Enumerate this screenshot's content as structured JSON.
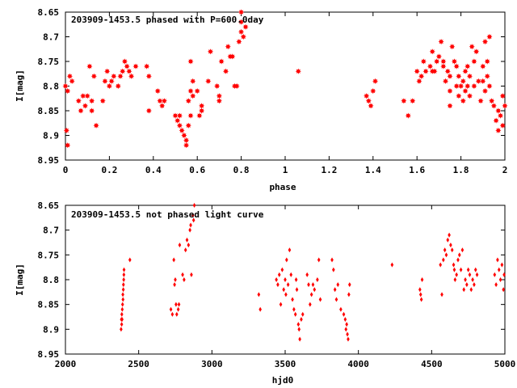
{
  "chart_data": [
    {
      "type": "scatter",
      "title": "203909-1453.5 phased with P=600.0day",
      "xlabel": "phase",
      "ylabel": "I[mag]",
      "xlim": [
        0,
        2
      ],
      "ylim": [
        8.65,
        8.95
      ],
      "y_inverted": true,
      "xticks": [
        "0",
        "0.2",
        "0.4",
        "0.6",
        "0.8",
        "1",
        "1.2",
        "1.4",
        "1.6",
        "1.8",
        "2"
      ],
      "xtick_values": [
        0,
        0.2,
        0.4,
        0.6,
        0.8,
        1,
        1.2,
        1.4,
        1.6,
        1.8,
        2
      ],
      "yticks": [
        "8.65",
        "8.7",
        "8.75",
        "8.8",
        "8.85",
        "8.9",
        "8.95"
      ],
      "ytick_values": [
        8.65,
        8.7,
        8.75,
        8.8,
        8.85,
        8.9,
        8.95
      ],
      "marker_color": "#ff0000",
      "marker": "star",
      "series": [
        {
          "points": [
            [
              0.005,
              8.89
            ],
            [
              0.01,
              8.92
            ],
            [
              0.0,
              8.8
            ],
            [
              0.01,
              8.81
            ],
            [
              0.02,
              8.78
            ],
            [
              0.03,
              8.79
            ],
            [
              0.06,
              8.83
            ],
            [
              0.07,
              8.85
            ],
            [
              0.08,
              8.82
            ],
            [
              0.09,
              8.84
            ],
            [
              0.1,
              8.82
            ],
            [
              0.11,
              8.76
            ],
            [
              0.12,
              8.83
            ],
            [
              0.12,
              8.85
            ],
            [
              0.13,
              8.78
            ],
            [
              0.14,
              8.88
            ],
            [
              0.17,
              8.83
            ],
            [
              0.18,
              8.79
            ],
            [
              0.19,
              8.77
            ],
            [
              0.2,
              8.8
            ],
            [
              0.21,
              8.79
            ],
            [
              0.22,
              8.78
            ],
            [
              0.24,
              8.8
            ],
            [
              0.25,
              8.78
            ],
            [
              0.26,
              8.77
            ],
            [
              0.27,
              8.75
            ],
            [
              0.28,
              8.76
            ],
            [
              0.29,
              8.77
            ],
            [
              0.3,
              8.78
            ],
            [
              0.32,
              8.76
            ],
            [
              0.37,
              8.76
            ],
            [
              0.38,
              8.78
            ],
            [
              0.38,
              8.85
            ],
            [
              0.42,
              8.81
            ],
            [
              0.43,
              8.83
            ],
            [
              0.44,
              8.84
            ],
            [
              0.45,
              8.83
            ],
            [
              0.5,
              8.86
            ],
            [
              0.51,
              8.87
            ],
            [
              0.52,
              8.88
            ],
            [
              0.52,
              8.86
            ],
            [
              0.53,
              8.89
            ],
            [
              0.54,
              8.9
            ],
            [
              0.55,
              8.91
            ],
            [
              0.55,
              8.92
            ],
            [
              0.56,
              8.88
            ],
            [
              0.56,
              8.83
            ],
            [
              0.57,
              8.81
            ],
            [
              0.57,
              8.86
            ],
            [
              0.58,
              8.82
            ],
            [
              0.58,
              8.79
            ],
            [
              0.57,
              8.75
            ],
            [
              0.6,
              8.81
            ],
            [
              0.61,
              8.86
            ],
            [
              0.62,
              8.85
            ],
            [
              0.62,
              8.84
            ],
            [
              0.65,
              8.79
            ],
            [
              0.66,
              8.73
            ],
            [
              0.69,
              8.8
            ],
            [
              0.7,
              8.83
            ],
            [
              0.7,
              8.82
            ],
            [
              0.71,
              8.75
            ],
            [
              0.73,
              8.77
            ],
            [
              0.74,
              8.72
            ],
            [
              0.75,
              8.74
            ],
            [
              0.76,
              8.74
            ],
            [
              0.77,
              8.8
            ],
            [
              0.78,
              8.8
            ],
            [
              0.79,
              8.71
            ],
            [
              0.8,
              8.69
            ],
            [
              0.81,
              8.7
            ],
            [
              0.8,
              8.65
            ],
            [
              0.8,
              8.67
            ],
            [
              0.82,
              8.68
            ],
            [
              1.06,
              8.77
            ],
            [
              1.37,
              8.82
            ],
            [
              1.38,
              8.83
            ],
            [
              1.39,
              8.84
            ],
            [
              1.4,
              8.81
            ],
            [
              1.41,
              8.79
            ],
            [
              1.54,
              8.83
            ],
            [
              1.56,
              8.86
            ],
            [
              1.58,
              8.83
            ],
            [
              1.6,
              8.77
            ],
            [
              1.61,
              8.79
            ],
            [
              1.62,
              8.78
            ],
            [
              1.63,
              8.75
            ],
            [
              1.64,
              8.77
            ],
            [
              1.66,
              8.76
            ],
            [
              1.67,
              8.77
            ],
            [
              1.67,
              8.73
            ],
            [
              1.68,
              8.77
            ],
            [
              1.69,
              8.75
            ],
            [
              1.7,
              8.74
            ],
            [
              1.71,
              8.71
            ],
            [
              1.72,
              8.75
            ],
            [
              1.72,
              8.76
            ],
            [
              1.73,
              8.79
            ],
            [
              1.74,
              8.77
            ],
            [
              1.75,
              8.78
            ],
            [
              1.75,
              8.81
            ],
            [
              1.75,
              8.84
            ],
            [
              1.76,
              8.72
            ],
            [
              1.77,
              8.75
            ],
            [
              1.78,
              8.76
            ],
            [
              1.78,
              8.8
            ],
            [
              1.79,
              8.78
            ],
            [
              1.79,
              8.82
            ],
            [
              1.8,
              8.8
            ],
            [
              1.81,
              8.79
            ],
            [
              1.81,
              8.83
            ],
            [
              1.82,
              8.77
            ],
            [
              1.82,
              8.81
            ],
            [
              1.83,
              8.76
            ],
            [
              1.83,
              8.8
            ],
            [
              1.84,
              8.82
            ],
            [
              1.84,
              8.78
            ],
            [
              1.85,
              8.72
            ],
            [
              1.86,
              8.75
            ],
            [
              1.86,
              8.8
            ],
            [
              1.87,
              8.73
            ],
            [
              1.88,
              8.79
            ],
            [
              1.89,
              8.83
            ],
            [
              1.9,
              8.76
            ],
            [
              1.9,
              8.79
            ],
            [
              1.91,
              8.71
            ],
            [
              1.91,
              8.81
            ],
            [
              1.92,
              8.75
            ],
            [
              1.92,
              8.78
            ],
            [
              1.93,
              8.7
            ],
            [
              1.93,
              8.8
            ],
            [
              1.94,
              8.83
            ],
            [
              1.95,
              8.84
            ],
            [
              1.96,
              8.87
            ],
            [
              1.97,
              8.89
            ],
            [
              1.97,
              8.85
            ],
            [
              1.98,
              8.86
            ],
            [
              1.99,
              8.88
            ],
            [
              1.99,
              8.82
            ],
            [
              2.0,
              8.84
            ]
          ]
        }
      ]
    },
    {
      "type": "scatter",
      "title": "203909-1453.5 not phased light curve",
      "xlabel": "hjd0",
      "ylabel": "I[mag]",
      "xlim": [
        2000,
        5000
      ],
      "ylim": [
        8.65,
        8.95
      ],
      "y_inverted": true,
      "xticks": [
        "2000",
        "2500",
        "3000",
        "3500",
        "4000",
        "4500",
        "5000"
      ],
      "xtick_values": [
        2000,
        2500,
        3000,
        3500,
        4000,
        4500,
        5000
      ],
      "yticks": [
        "8.65",
        "8.7",
        "8.75",
        "8.8",
        "8.85",
        "8.9",
        "8.95"
      ],
      "ytick_values": [
        8.65,
        8.7,
        8.75,
        8.8,
        8.85,
        8.9,
        8.95
      ],
      "marker_color": "#ff0000",
      "marker": "diamond",
      "series": [
        {
          "points": [
            [
              2380,
              8.9
            ],
            [
              2382,
              8.88
            ],
            [
              2385,
              8.87
            ],
            [
              2388,
              8.86
            ],
            [
              2390,
              8.85
            ],
            [
              2393,
              8.84
            ],
            [
              2395,
              8.82
            ],
            [
              2398,
              8.8
            ],
            [
              2400,
              8.78
            ],
            [
              2384,
              8.89
            ],
            [
              2387,
              8.88
            ],
            [
              2392,
              8.83
            ],
            [
              2396,
              8.81
            ],
            [
              2399,
              8.79
            ],
            [
              2440,
              8.76
            ],
            [
              2720,
              8.86
            ],
            [
              2730,
              8.87
            ],
            [
              2740,
              8.76
            ],
            [
              2745,
              8.81
            ],
            [
              2750,
              8.8
            ],
            [
              2755,
              8.85
            ],
            [
              2760,
              8.87
            ],
            [
              2770,
              8.86
            ],
            [
              2775,
              8.85
            ],
            [
              2780,
              8.73
            ],
            [
              2800,
              8.79
            ],
            [
              2810,
              8.8
            ],
            [
              2820,
              8.74
            ],
            [
              2830,
              8.72
            ],
            [
              2840,
              8.73
            ],
            [
              2850,
              8.7
            ],
            [
              2855,
              8.69
            ],
            [
              2860,
              8.79
            ],
            [
              2870,
              8.67
            ],
            [
              2875,
              8.68
            ],
            [
              2880,
              8.65
            ],
            [
              3320,
              8.83
            ],
            [
              3330,
              8.86
            ],
            [
              3440,
              8.8
            ],
            [
              3450,
              8.81
            ],
            [
              3460,
              8.79
            ],
            [
              3470,
              8.85
            ],
            [
              3480,
              8.78
            ],
            [
              3490,
              8.82
            ],
            [
              3500,
              8.8
            ],
            [
              3505,
              8.83
            ],
            [
              3510,
              8.76
            ],
            [
              3520,
              8.81
            ],
            [
              3530,
              8.74
            ],
            [
              3540,
              8.79
            ],
            [
              3550,
              8.84
            ],
            [
              3560,
              8.86
            ],
            [
              3570,
              8.87
            ],
            [
              3575,
              8.8
            ],
            [
              3580,
              8.82
            ],
            [
              3590,
              8.89
            ],
            [
              3595,
              8.9
            ],
            [
              3600,
              8.92
            ],
            [
              3610,
              8.88
            ],
            [
              3620,
              8.87
            ],
            [
              3650,
              8.79
            ],
            [
              3660,
              8.81
            ],
            [
              3670,
              8.85
            ],
            [
              3680,
              8.83
            ],
            [
              3690,
              8.81
            ],
            [
              3700,
              8.82
            ],
            [
              3720,
              8.8
            ],
            [
              3730,
              8.76
            ],
            [
              3740,
              8.84
            ],
            [
              3820,
              8.76
            ],
            [
              3830,
              8.78
            ],
            [
              3840,
              8.82
            ],
            [
              3850,
              8.84
            ],
            [
              3860,
              8.81
            ],
            [
              3880,
              8.86
            ],
            [
              3900,
              8.87
            ],
            [
              3910,
              8.88
            ],
            [
              3915,
              8.9
            ],
            [
              3920,
              8.89
            ],
            [
              3925,
              8.91
            ],
            [
              3930,
              8.92
            ],
            [
              3935,
              8.83
            ],
            [
              3940,
              8.81
            ],
            [
              4230,
              8.77
            ],
            [
              4420,
              8.82
            ],
            [
              4425,
              8.83
            ],
            [
              4430,
              8.84
            ],
            [
              4435,
              8.8
            ],
            [
              4560,
              8.77
            ],
            [
              4570,
              8.83
            ],
            [
              4580,
              8.76
            ],
            [
              4590,
              8.74
            ],
            [
              4600,
              8.75
            ],
            [
              4610,
              8.72
            ],
            [
              4620,
              8.71
            ],
            [
              4630,
              8.73
            ],
            [
              4640,
              8.74
            ],
            [
              4650,
              8.77
            ],
            [
              4655,
              8.78
            ],
            [
              4660,
              8.8
            ],
            [
              4670,
              8.79
            ],
            [
              4680,
              8.76
            ],
            [
              4690,
              8.75
            ],
            [
              4700,
              8.78
            ],
            [
              4710,
              8.74
            ],
            [
              4720,
              8.82
            ],
            [
              4730,
              8.8
            ],
            [
              4740,
              8.81
            ],
            [
              4750,
              8.78
            ],
            [
              4760,
              8.79
            ],
            [
              4770,
              8.82
            ],
            [
              4780,
              8.8
            ],
            [
              4790,
              8.81
            ],
            [
              4800,
              8.78
            ],
            [
              4810,
              8.79
            ],
            [
              4930,
              8.79
            ],
            [
              4940,
              8.81
            ],
            [
              4950,
              8.76
            ],
            [
              4960,
              8.78
            ],
            [
              4970,
              8.8
            ],
            [
              4980,
              8.77
            ],
            [
              4990,
              8.82
            ],
            [
              4995,
              8.79
            ]
          ]
        }
      ]
    }
  ]
}
